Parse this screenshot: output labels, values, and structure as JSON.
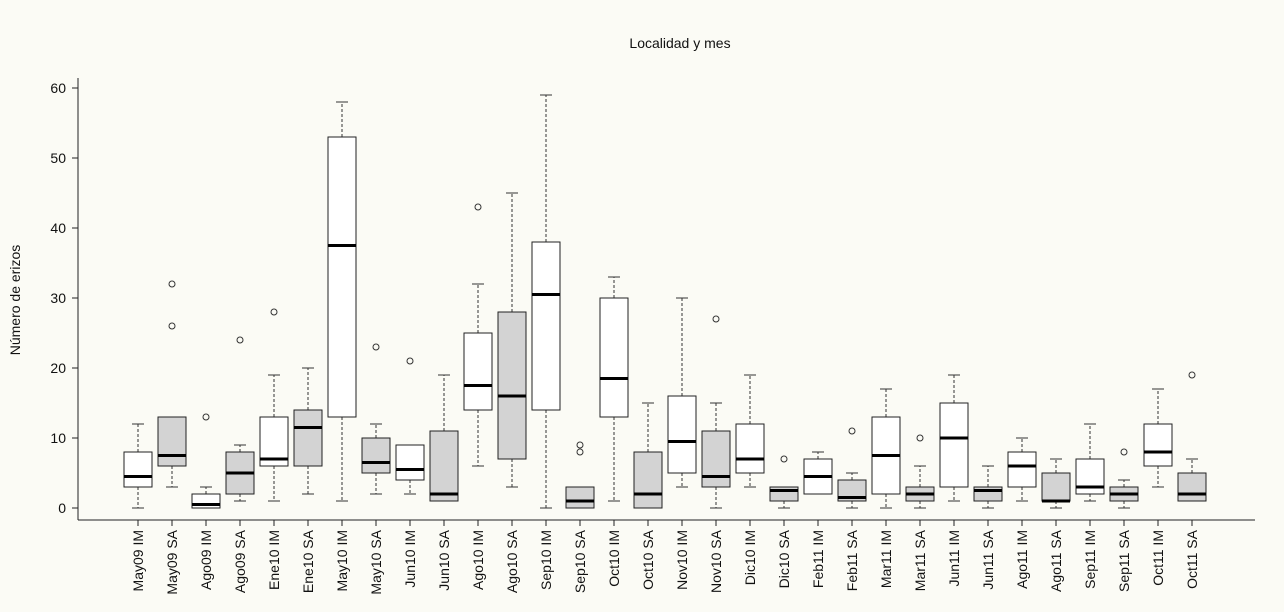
{
  "chart_data": {
    "type": "box",
    "title": "Localidad y mes",
    "y_label": "Número de erizos",
    "categories": [
      "May09 IM",
      "May09 SA",
      "Ago09 IM",
      "Ago09 SA",
      "Ene10 IM",
      "Ene10 SA",
      "May10 IM",
      "May10 SA",
      "Jun10 IM",
      "Jun10 SA",
      "Ago10 IM",
      "Ago10 SA",
      "Sep10 IM",
      "Sep10 SA",
      "Oct10 IM",
      "Oct10 SA",
      "Nov10 IM",
      "Nov10 SA",
      "Dic10 IM",
      "Dic10 SA",
      "Feb11 IM",
      "Feb11 SA",
      "Mar11 IM",
      "Mar11 SA",
      "Jun11 IM",
      "Jun11 SA",
      "Ago11 IM",
      "Ago11 SA",
      "Sep11 IM",
      "Sep11 SA",
      "Oct11 IM",
      "Oct11 SA"
    ],
    "whisker_low": [
      0,
      3,
      0,
      1,
      1,
      2,
      1,
      2,
      2,
      1,
      6,
      3,
      0,
      0,
      1,
      0,
      3,
      0,
      3,
      0,
      2,
      0,
      0,
      0,
      1,
      0,
      1,
      0,
      1,
      0,
      3,
      1
    ],
    "q1": [
      3,
      6,
      0,
      2,
      6,
      6,
      13,
      5,
      4,
      1,
      14,
      7,
      14,
      0,
      13,
      0,
      5,
      3,
      5,
      1,
      2,
      1,
      2,
      1,
      3,
      1,
      3,
      1,
      2,
      1,
      6,
      1
    ],
    "median": [
      4.5,
      7.5,
      0.5,
      5,
      7,
      11.5,
      37.5,
      6.5,
      5.5,
      2,
      17.5,
      16,
      30.5,
      1,
      18.5,
      2,
      9.5,
      4.5,
      7,
      2.5,
      4.5,
      1.5,
      7.5,
      2,
      10,
      2.5,
      6,
      1,
      3,
      2,
      8,
      2
    ],
    "q3": [
      8,
      13,
      2,
      8,
      13,
      14,
      53,
      10,
      9,
      11,
      25,
      28,
      38,
      3,
      30,
      8,
      16,
      11,
      12,
      3,
      7,
      4,
      13,
      3,
      15,
      3,
      8,
      5,
      7,
      3,
      12,
      5
    ],
    "whisker_high": [
      12,
      13,
      3,
      9,
      19,
      20,
      58,
      12,
      9,
      19,
      32,
      45,
      59,
      3,
      33,
      15,
      30,
      15,
      19,
      3,
      8,
      5,
      17,
      6,
      19,
      6,
      10,
      7,
      12,
      4,
      17,
      7
    ],
    "outliers": [
      [],
      [
        26,
        32
      ],
      [
        13
      ],
      [
        24
      ],
      [
        28
      ],
      [],
      [],
      [
        23
      ],
      [
        21
      ],
      [],
      [
        43
      ],
      [],
      [],
      [
        8,
        9
      ],
      [],
      [],
      [],
      [
        27
      ],
      [],
      [
        7
      ],
      [],
      [
        11
      ],
      [],
      [
        10
      ],
      [],
      [],
      [],
      [],
      [],
      [
        8
      ],
      [],
      [
        19
      ]
    ],
    "colors": [
      "#ffffff",
      "#d3d3d3",
      "#ffffff",
      "#d3d3d3",
      "#ffffff",
      "#d3d3d3",
      "#ffffff",
      "#d3d3d3",
      "#ffffff",
      "#d3d3d3",
      "#ffffff",
      "#d3d3d3",
      "#ffffff",
      "#d3d3d3",
      "#ffffff",
      "#d3d3d3",
      "#ffffff",
      "#d3d3d3",
      "#ffffff",
      "#d3d3d3",
      "#ffffff",
      "#d3d3d3",
      "#ffffff",
      "#d3d3d3",
      "#ffffff",
      "#d3d3d3",
      "#ffffff",
      "#d3d3d3",
      "#ffffff",
      "#d3d3d3",
      "#ffffff",
      "#d3d3d3"
    ],
    "ylim": [
      -2,
      62
    ],
    "yticks": [
      0,
      10,
      20,
      30,
      40,
      50,
      60
    ]
  }
}
